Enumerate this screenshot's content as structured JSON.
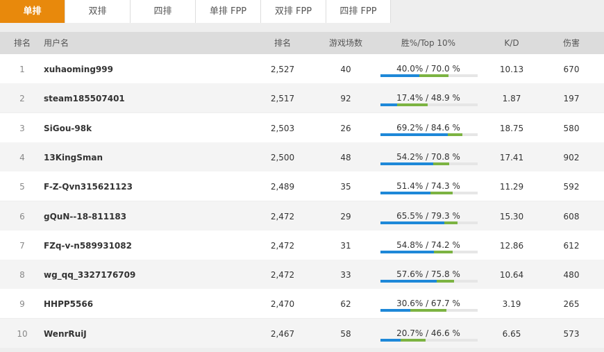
{
  "tabs": [
    "单排",
    "双排",
    "四排",
    "单排 FPP",
    "双排 FPP",
    "四排 FPP"
  ],
  "active_tab": 0,
  "table": {
    "headers": [
      "排名",
      "用户名",
      "排名",
      "游戏场数",
      "胜%/Top 10%",
      "K/D",
      "伤害"
    ],
    "rows": [
      {
        "rank": 1,
        "name": "xuhaoming999",
        "rating": "2,527",
        "games": 40,
        "win": 40.0,
        "top10": 70.0,
        "win_top_label": "40.0% / 70.0 %",
        "kd": "10.13",
        "damage": 670
      },
      {
        "rank": 2,
        "name": "steam185507401",
        "rating": "2,517",
        "games": 92,
        "win": 17.4,
        "top10": 48.9,
        "win_top_label": "17.4% / 48.9 %",
        "kd": "1.87",
        "damage": 197
      },
      {
        "rank": 3,
        "name": "SiGou-98k",
        "rating": "2,503",
        "games": 26,
        "win": 69.2,
        "top10": 84.6,
        "win_top_label": "69.2% / 84.6 %",
        "kd": "18.75",
        "damage": 580
      },
      {
        "rank": 4,
        "name": "13KingSman",
        "rating": "2,500",
        "games": 48,
        "win": 54.2,
        "top10": 70.8,
        "win_top_label": "54.2% / 70.8 %",
        "kd": "17.41",
        "damage": 902
      },
      {
        "rank": 5,
        "name": "F-Z-Qvn315621123",
        "rating": "2,489",
        "games": 35,
        "win": 51.4,
        "top10": 74.3,
        "win_top_label": "51.4% / 74.3 %",
        "kd": "11.29",
        "damage": 592
      },
      {
        "rank": 6,
        "name": "gQuN--18-811183",
        "rating": "2,472",
        "games": 29,
        "win": 65.5,
        "top10": 79.3,
        "win_top_label": "65.5% / 79.3 %",
        "kd": "15.30",
        "damage": 608
      },
      {
        "rank": 7,
        "name": "FZq-v-n589931082",
        "rating": "2,472",
        "games": 31,
        "win": 54.8,
        "top10": 74.2,
        "win_top_label": "54.8% / 74.2 %",
        "kd": "12.86",
        "damage": 612
      },
      {
        "rank": 8,
        "name": "wg_qq_3327176709",
        "rating": "2,472",
        "games": 33,
        "win": 57.6,
        "top10": 75.8,
        "win_top_label": "57.6% / 75.8 %",
        "kd": "10.64",
        "damage": 480
      },
      {
        "rank": 9,
        "name": "HHPP5566",
        "rating": "2,470",
        "games": 62,
        "win": 30.6,
        "top10": 67.7,
        "win_top_label": "30.6% / 67.7 %",
        "kd": "3.19",
        "damage": 265
      },
      {
        "rank": 10,
        "name": "WenrRuiJ",
        "rating": "2,467",
        "games": 58,
        "win": 20.7,
        "top10": 46.6,
        "win_top_label": "20.7% / 46.6 %",
        "kd": "6.65",
        "damage": 573
      }
    ]
  }
}
